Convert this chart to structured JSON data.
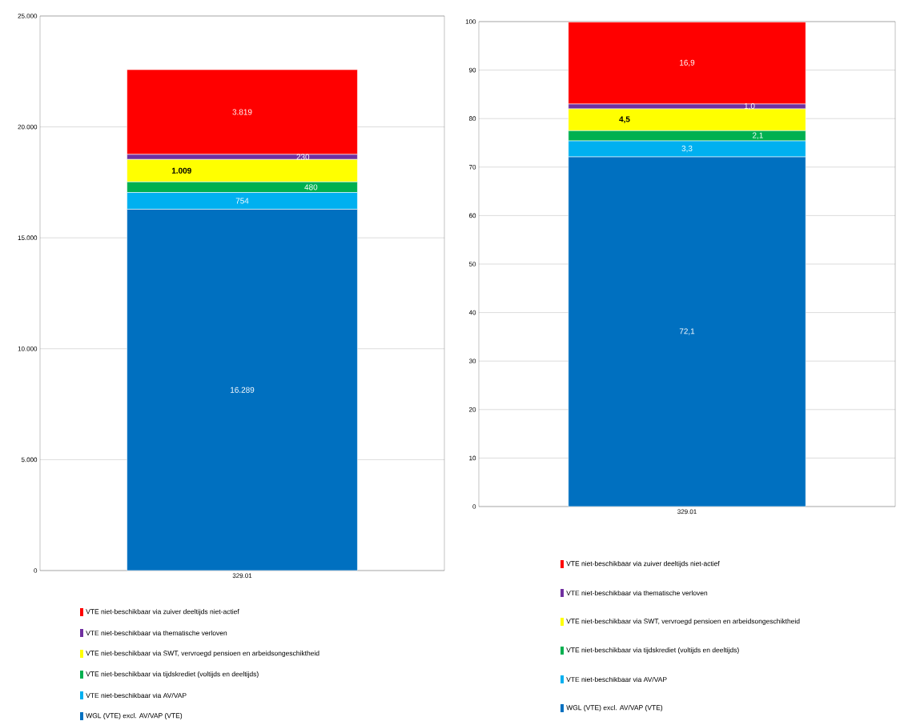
{
  "chart_data": [
    {
      "type": "bar",
      "stacked": true,
      "categories": [
        "329.01"
      ],
      "ylim": [
        0,
        25000
      ],
      "yticks": [
        0,
        {
          "value": 5000,
          "label": "5.000"
        },
        {
          "value": 10000,
          "label": "10.000"
        },
        {
          "value": 15000,
          "label": "15.000"
        },
        {
          "value": 20000,
          "label": "20.000"
        },
        {
          "value": 25000,
          "label": "25.000"
        }
      ],
      "grid": "y",
      "legend": "bottom",
      "series": [
        {
          "name": "WGL (VTE) excl. AV/VAP (VTE)",
          "color": "#0070c0",
          "values": [
            16289
          ],
          "value_labels": [
            "16.289"
          ]
        },
        {
          "name": "VTE niet-beschikbaar via AV/VAP",
          "color": "#00b0f0",
          "values": [
            754
          ],
          "value_labels": [
            "754"
          ]
        },
        {
          "name": "VTE niet-beschikbaar via tijdskrediet (voltijds en deeltijds)",
          "color": "#00b050",
          "values": [
            480
          ],
          "value_labels": [
            "480"
          ]
        },
        {
          "name": "VTE niet-beschikbaar via SWT, vervroegd pensioen en arbeidsongeschiktheid",
          "color": "#ffff00",
          "values": [
            1009
          ],
          "value_labels": [
            "1.009"
          ]
        },
        {
          "name": "VTE niet-beschikbaar via thematische verloven",
          "color": "#7030a0",
          "values": [
            230
          ],
          "value_labels": [
            "230"
          ]
        },
        {
          "name": "VTE niet-beschikbaar via zuiver deeltijds niet-actief",
          "color": "#ff0000",
          "values": [
            3819
          ],
          "value_labels": [
            "3.819"
          ]
        }
      ]
    },
    {
      "type": "bar",
      "stacked": true,
      "categories": [
        "329.01"
      ],
      "ylim": [
        0,
        100
      ],
      "yticks": [
        0,
        10,
        20,
        30,
        40,
        50,
        60,
        70,
        80,
        90,
        100
      ],
      "grid": "y",
      "legend": "bottom",
      "series": [
        {
          "name": "WGL (VTE) excl. AV/VAP (VTE)",
          "color": "#0070c0",
          "values": [
            72.1
          ],
          "value_labels": [
            "72,1"
          ]
        },
        {
          "name": "VTE niet-beschikbaar via AV/VAP",
          "color": "#00b0f0",
          "values": [
            3.3
          ],
          "value_labels": [
            "3,3"
          ]
        },
        {
          "name": "VTE niet-beschikbaar via tijdskrediet (voltijds en deeltijds)",
          "color": "#00b050",
          "values": [
            2.1
          ],
          "value_labels": [
            "2,1"
          ]
        },
        {
          "name": "VTE niet-beschikbaar via SWT, vervroegd pensioen en arbeidsongeschiktheid",
          "color": "#ffff00",
          "values": [
            4.5
          ],
          "value_labels": [
            "4,5"
          ]
        },
        {
          "name": "VTE niet-beschikbaar via thematische verloven",
          "color": "#7030a0",
          "values": [
            1.0
          ],
          "value_labels": [
            "1,0"
          ]
        },
        {
          "name": "VTE niet-beschikbaar via zuiver deeltijds niet-actief",
          "color": "#ff0000",
          "values": [
            16.9
          ],
          "value_labels": [
            "16,9"
          ]
        }
      ]
    }
  ]
}
